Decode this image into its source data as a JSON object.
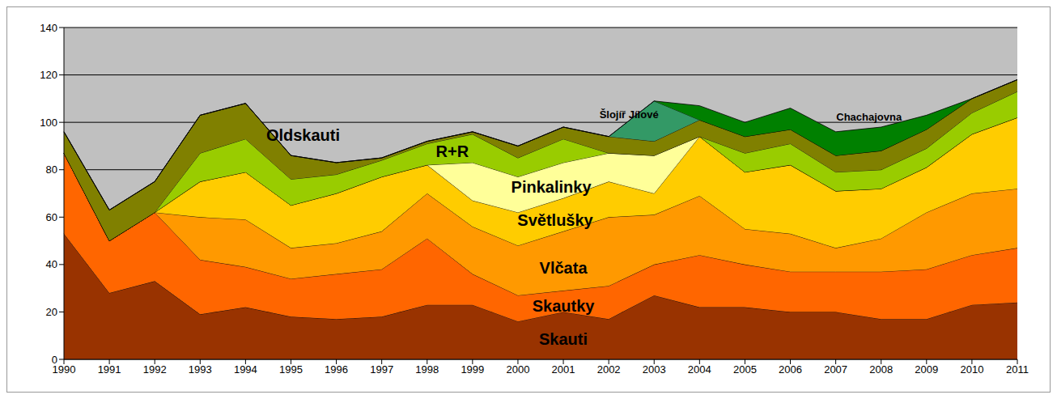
{
  "chart_data": {
    "type": "area",
    "stacked": true,
    "grid": true,
    "categories": [
      "1990",
      "1991",
      "1992",
      "1993",
      "1994",
      "1995",
      "1996",
      "1997",
      "1998",
      "1999",
      "2000",
      "2001",
      "2002",
      "2003",
      "2004",
      "2005",
      "2006",
      "2007",
      "2008",
      "2009",
      "2010",
      "2011"
    ],
    "ylim": [
      0,
      140
    ],
    "yticks": [
      0,
      20,
      40,
      60,
      80,
      100,
      120,
      140
    ],
    "series": [
      {
        "name": "Skauti",
        "color": "#993300",
        "values": [
          53,
          28,
          33,
          19,
          22,
          18,
          17,
          18,
          23,
          23,
          16,
          20,
          17,
          27,
          22,
          22,
          20,
          20,
          17,
          17,
          23,
          24
        ]
      },
      {
        "name": "Skautky",
        "color": "#ff6600",
        "values": [
          34,
          22,
          29,
          23,
          17,
          16,
          19,
          20,
          28,
          13,
          11,
          9,
          14,
          13,
          22,
          18,
          17,
          17,
          20,
          21,
          21,
          23
        ]
      },
      {
        "name": "Vlčata",
        "color": "#ff9900",
        "values": [
          0,
          0,
          0,
          18,
          20,
          13,
          13,
          16,
          19,
          20,
          21,
          25,
          29,
          21,
          25,
          15,
          16,
          10,
          14,
          24,
          26,
          25
        ]
      },
      {
        "name": "Světlušky",
        "color": "#ffcc00",
        "values": [
          0,
          0,
          0,
          15,
          20,
          18,
          21,
          23,
          12,
          11,
          14,
          14,
          15,
          9,
          25,
          24,
          29,
          24,
          21,
          19,
          25,
          30
        ]
      },
      {
        "name": "Pinkalinky",
        "color": "#ffff99",
        "values": [
          0,
          0,
          0,
          0,
          0,
          0,
          0,
          0,
          0,
          16,
          15,
          15,
          12,
          16,
          0,
          0,
          0,
          0,
          0,
          0,
          0,
          0
        ]
      },
      {
        "name": "R+R",
        "color": "#99cc00",
        "values": [
          0,
          0,
          0,
          12,
          14,
          11,
          8,
          7,
          9,
          12,
          8,
          10,
          0,
          0,
          0,
          8,
          9,
          8,
          8,
          8,
          9,
          11
        ]
      },
      {
        "name": "Oldskauti",
        "color": "#808000",
        "values": [
          9,
          13,
          13,
          16,
          15,
          10,
          5,
          1,
          1,
          1,
          5,
          5,
          7,
          6,
          7,
          7,
          6,
          7,
          8,
          8,
          6,
          5
        ]
      },
      {
        "name": "Šlojíř Jílové",
        "color": "#339966",
        "values": [
          0,
          0,
          0,
          0,
          0,
          0,
          0,
          0,
          0,
          0,
          0,
          0,
          0,
          17,
          0,
          0,
          0,
          0,
          0,
          0,
          0,
          0
        ]
      },
      {
        "name": "Chachajovna",
        "color": "#008000",
        "values": [
          0,
          0,
          0,
          0,
          0,
          0,
          0,
          0,
          0,
          0,
          0,
          0,
          0,
          0,
          6,
          6,
          9,
          10,
          10,
          6,
          0,
          0
        ]
      }
    ]
  }
}
